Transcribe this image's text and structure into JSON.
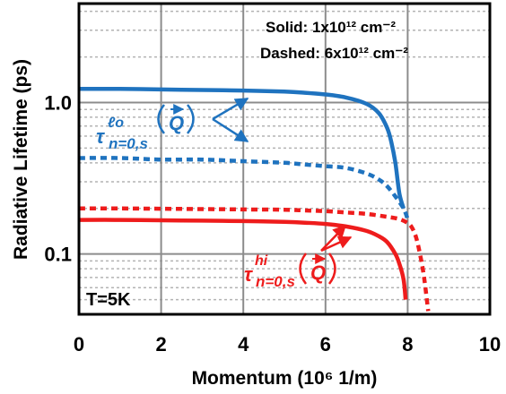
{
  "chart_data": {
    "type": "line",
    "xlabel": "Momentum (10⁶ 1/m)",
    "ylabel": "Radiative Lifetime (ps)",
    "xlim": [
      0,
      10
    ],
    "ylim": [
      0.04,
      4.5
    ],
    "yscale": "log",
    "grid": true,
    "x_ticks": [
      "0",
      "2",
      "4",
      "6",
      "8",
      "10"
    ],
    "y_ticks": [
      "0.1",
      "1.0"
    ],
    "x_tick_values": [
      0,
      2,
      4,
      6,
      8,
      10
    ],
    "y_tick_values": [
      0.1,
      1.0
    ],
    "legend_notes": {
      "solid": "Solid: 1x10¹² cm⁻²",
      "dashed": "Dashed: 6x10¹² cm⁻²"
    },
    "temperature": "T=5K",
    "annotations": {
      "lo": "τ^{ℓo}_{n=0,s}(Q⃗)",
      "hi": "τ^{hi}_{n=0,s}(Q⃗)"
    },
    "series": [
      {
        "label": "lo, solid",
        "color": "#1f73bf",
        "style": "solid",
        "x": [
          0,
          1,
          2,
          3,
          4,
          5,
          5.5,
          6,
          6.5,
          7,
          7.3,
          7.5,
          7.6,
          7.7,
          7.8,
          7.9
        ],
        "y": [
          1.23,
          1.23,
          1.22,
          1.21,
          1.2,
          1.18,
          1.16,
          1.13,
          1.08,
          0.98,
          0.85,
          0.68,
          0.55,
          0.4,
          0.25,
          0.2
        ]
      },
      {
        "label": "lo, dashed",
        "color": "#1f73bf",
        "style": "dashed",
        "x": [
          0,
          1,
          2,
          3,
          4,
          5,
          5.5,
          6,
          6.5,
          7,
          7.3,
          7.5,
          7.7,
          7.9,
          8.0
        ],
        "y": [
          0.43,
          0.43,
          0.42,
          0.42,
          0.41,
          0.4,
          0.39,
          0.38,
          0.37,
          0.34,
          0.31,
          0.28,
          0.24,
          0.2,
          0.17
        ]
      },
      {
        "label": "hi, solid",
        "color": "#ee1c1c",
        "style": "solid",
        "x": [
          0,
          1,
          2,
          3,
          4,
          5,
          5.5,
          6,
          6.5,
          7,
          7.3,
          7.5,
          7.7,
          7.8,
          7.9,
          7.95
        ],
        "y": [
          0.168,
          0.168,
          0.167,
          0.166,
          0.165,
          0.163,
          0.161,
          0.158,
          0.152,
          0.142,
          0.131,
          0.12,
          0.1,
          0.086,
          0.068,
          0.05
        ]
      },
      {
        "label": "hi, dashed",
        "color": "#ee1c1c",
        "style": "dashed",
        "x": [
          0,
          1,
          2,
          3,
          4,
          5,
          5.5,
          6,
          6.5,
          7,
          7.5,
          7.8,
          8.0,
          8.1,
          8.2,
          8.3,
          8.4,
          8.5
        ],
        "y": [
          0.2,
          0.2,
          0.199,
          0.198,
          0.197,
          0.196,
          0.194,
          0.192,
          0.188,
          0.184,
          0.176,
          0.17,
          0.16,
          0.15,
          0.13,
          0.1,
          0.07,
          0.042
        ]
      }
    ]
  }
}
